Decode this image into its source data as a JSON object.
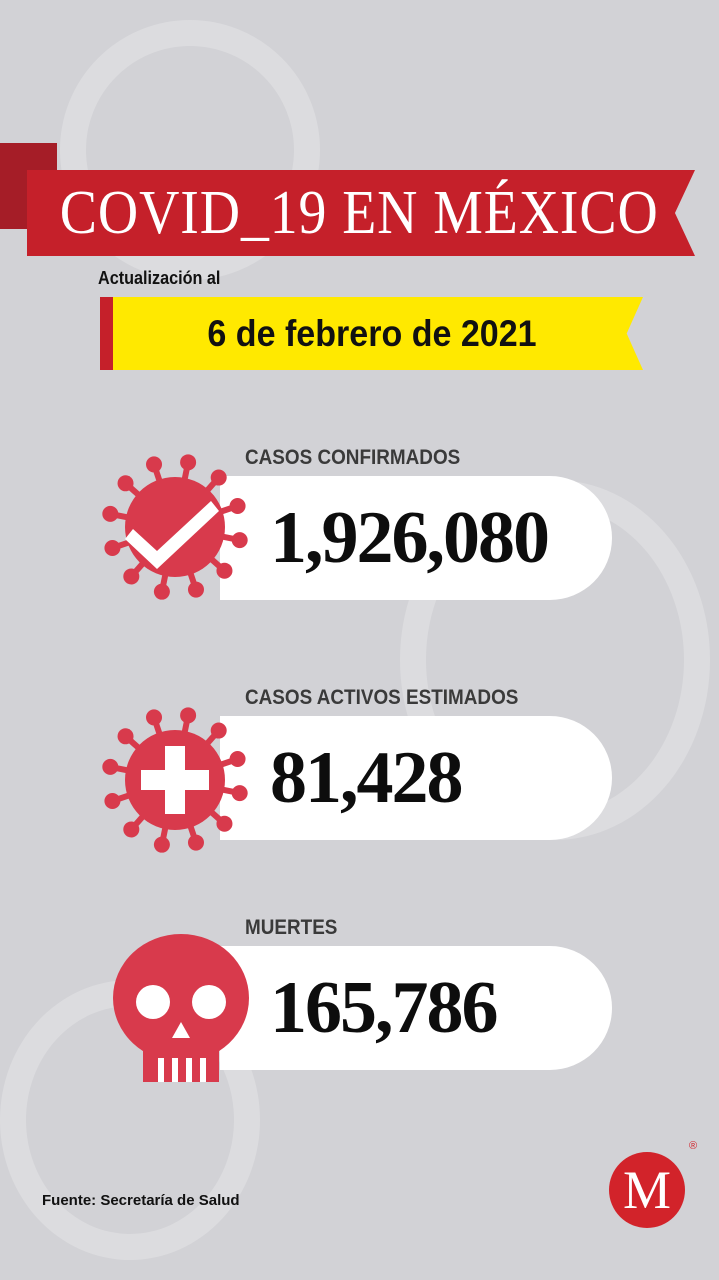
{
  "header": {
    "title": "COVID_19 EN MÉXICO",
    "update_label": "Actualización al",
    "date": "6 de febrero de 2021"
  },
  "stats": [
    {
      "label": "CASOS CONFIRMADOS",
      "value": "1,926,080",
      "icon": "virus-check-icon"
    },
    {
      "label": "CASOS ACTIVOS ESTIMADOS",
      "value": "81,428",
      "icon": "virus-plus-icon"
    },
    {
      "label": "MUERTES",
      "value": "165,786",
      "icon": "skull-icon"
    }
  ],
  "footer": {
    "source": "Fuente: Secretaría de Salud",
    "logo_letter": "M",
    "registered": "®"
  },
  "colors": {
    "background": "#d2d2d6",
    "banner": "#c5202a",
    "highlight": "#ffe900",
    "icon": "#d83a4c"
  }
}
